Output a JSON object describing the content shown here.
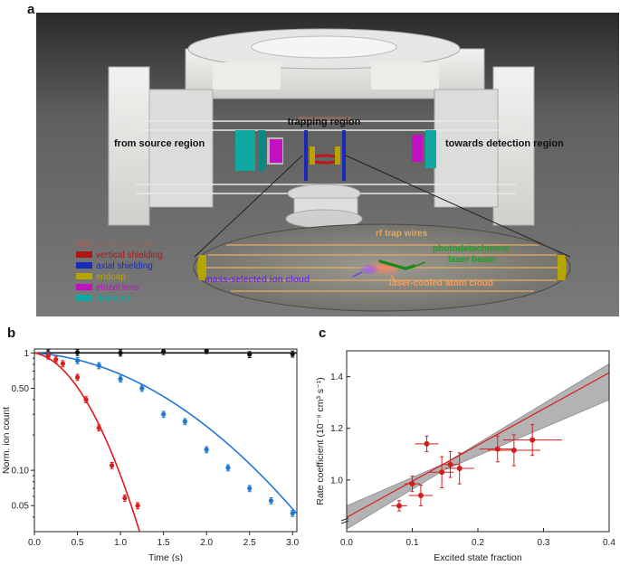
{
  "panel_a": {
    "label": "a",
    "region_labels": {
      "trapping": "trapping region",
      "source": "from source region",
      "detection": "towards detection region"
    },
    "inset_labels": {
      "wires": "rf trap wires",
      "photodetachment": "photodetachment",
      "laser_beam": "laser beam",
      "ion_cloud": "mass-selected ion cloud",
      "atom_cloud": "laser-cooled atom cloud"
    },
    "legend": [
      {
        "label": "atom trap coils",
        "color": "#8a6a60"
      },
      {
        "label": "vertical shielding",
        "color": "#b01515"
      },
      {
        "label": "axial shielding",
        "color": "#1a2ab8"
      },
      {
        "label": "endcap",
        "color": "#b8a400"
      },
      {
        "label": "einzel lens",
        "color": "#c010c0"
      },
      {
        "label": "deflector",
        "color": "#10a8a0"
      }
    ]
  },
  "panel_b_label": "b",
  "panel_c_label": "c",
  "chart_data": [
    {
      "type": "scatter",
      "panel": "b",
      "xlabel": "Time (s)",
      "ylabel": "Norm. ion count",
      "xlim": [
        0,
        3.05
      ],
      "ylim": [
        0.03,
        1.08
      ],
      "yscale": "log",
      "xticks": [
        "0.0",
        "0.5",
        "1.0",
        "1.5",
        "2.0",
        "2.5",
        "3.0"
      ],
      "yticks": [
        {
          "v": 1,
          "t": "1"
        },
        {
          "v": 0.5,
          "t": "0.50"
        },
        {
          "v": 0.1,
          "t": "0.10"
        },
        {
          "v": 0.05,
          "t": "0.05"
        }
      ],
      "series": [
        {
          "name": "black",
          "color": "#111111",
          "points": [
            [
              0.16,
              1.0
            ],
            [
              0.5,
              1.01
            ],
            [
              1.0,
              1.0
            ],
            [
              1.5,
              1.03
            ],
            [
              2.0,
              1.05
            ],
            [
              2.5,
              0.97
            ],
            [
              3.0,
              0.98
            ]
          ],
          "fit": {
            "kind": "flat",
            "value": 1.0
          }
        },
        {
          "name": "blue",
          "color": "#1f77d4",
          "points": [
            [
              0.16,
              0.96
            ],
            [
              0.5,
              0.86
            ],
            [
              0.75,
              0.78
            ],
            [
              1.0,
              0.6
            ],
            [
              1.25,
              0.5
            ],
            [
              1.5,
              0.3
            ],
            [
              1.75,
              0.26
            ],
            [
              2.0,
              0.15
            ],
            [
              2.25,
              0.105
            ],
            [
              2.5,
              0.07
            ],
            [
              2.75,
              0.055
            ],
            [
              3.0,
              0.043
            ]
          ],
          "fit": {
            "kind": "exp_quad",
            "a": 0.12,
            "b": 0.3
          }
        },
        {
          "name": "red",
          "color": "#e01a1a",
          "points": [
            [
              0.16,
              0.94
            ],
            [
              0.25,
              0.88
            ],
            [
              0.33,
              0.81
            ],
            [
              0.5,
              0.62
            ],
            [
              0.6,
              0.4
            ],
            [
              0.75,
              0.23
            ],
            [
              0.9,
              0.11
            ],
            [
              1.05,
              0.058
            ],
            [
              1.2,
              0.05
            ]
          ],
          "fit": {
            "kind": "exp_quad",
            "a": 0.3,
            "b": 2.1
          }
        }
      ]
    },
    {
      "type": "scatter",
      "panel": "c",
      "xlabel": "Excited state fraction",
      "ylabel": "Rate coefficient (10⁻⁹ cm³ s⁻¹)",
      "xlim": [
        0,
        0.4
      ],
      "ylim": [
        0.8,
        1.5
      ],
      "xticks": [
        "0.0",
        "0.1",
        "0.2",
        "0.3",
        "0.4"
      ],
      "yticks": [
        "0.8",
        "1.0",
        "1.2",
        "1.4"
      ],
      "points": [
        {
          "x": 0.08,
          "y": 0.9,
          "xerr": 0.012,
          "yerr": 0.02
        },
        {
          "x": 0.1,
          "y": 0.985,
          "xerr": 0.012,
          "yerr": 0.03
        },
        {
          "x": 0.113,
          "y": 0.94,
          "xerr": 0.018,
          "yerr": 0.04
        },
        {
          "x": 0.122,
          "y": 1.14,
          "xerr": 0.018,
          "yerr": 0.03
        },
        {
          "x": 0.145,
          "y": 1.03,
          "xerr": 0.018,
          "yerr": 0.06
        },
        {
          "x": 0.158,
          "y": 1.06,
          "xerr": 0.014,
          "yerr": 0.05
        },
        {
          "x": 0.172,
          "y": 1.045,
          "xerr": 0.022,
          "yerr": 0.06
        },
        {
          "x": 0.23,
          "y": 1.12,
          "xerr": 0.028,
          "yerr": 0.05
        },
        {
          "x": 0.255,
          "y": 1.115,
          "xerr": 0.04,
          "yerr": 0.06
        },
        {
          "x": 0.283,
          "y": 1.155,
          "xerr": 0.045,
          "yerr": 0.06
        }
      ],
      "fit": {
        "intercept": 0.855,
        "slope": 1.4
      },
      "band": {
        "lower": [
          [
            0,
            0.81
          ],
          [
            0.15,
            1.04
          ],
          [
            0.4,
            1.31
          ]
        ],
        "upper": [
          [
            0,
            0.9
          ],
          [
            0.15,
            1.065
          ],
          [
            0.4,
            1.45
          ]
        ]
      },
      "color": "#d41e1e"
    }
  ]
}
